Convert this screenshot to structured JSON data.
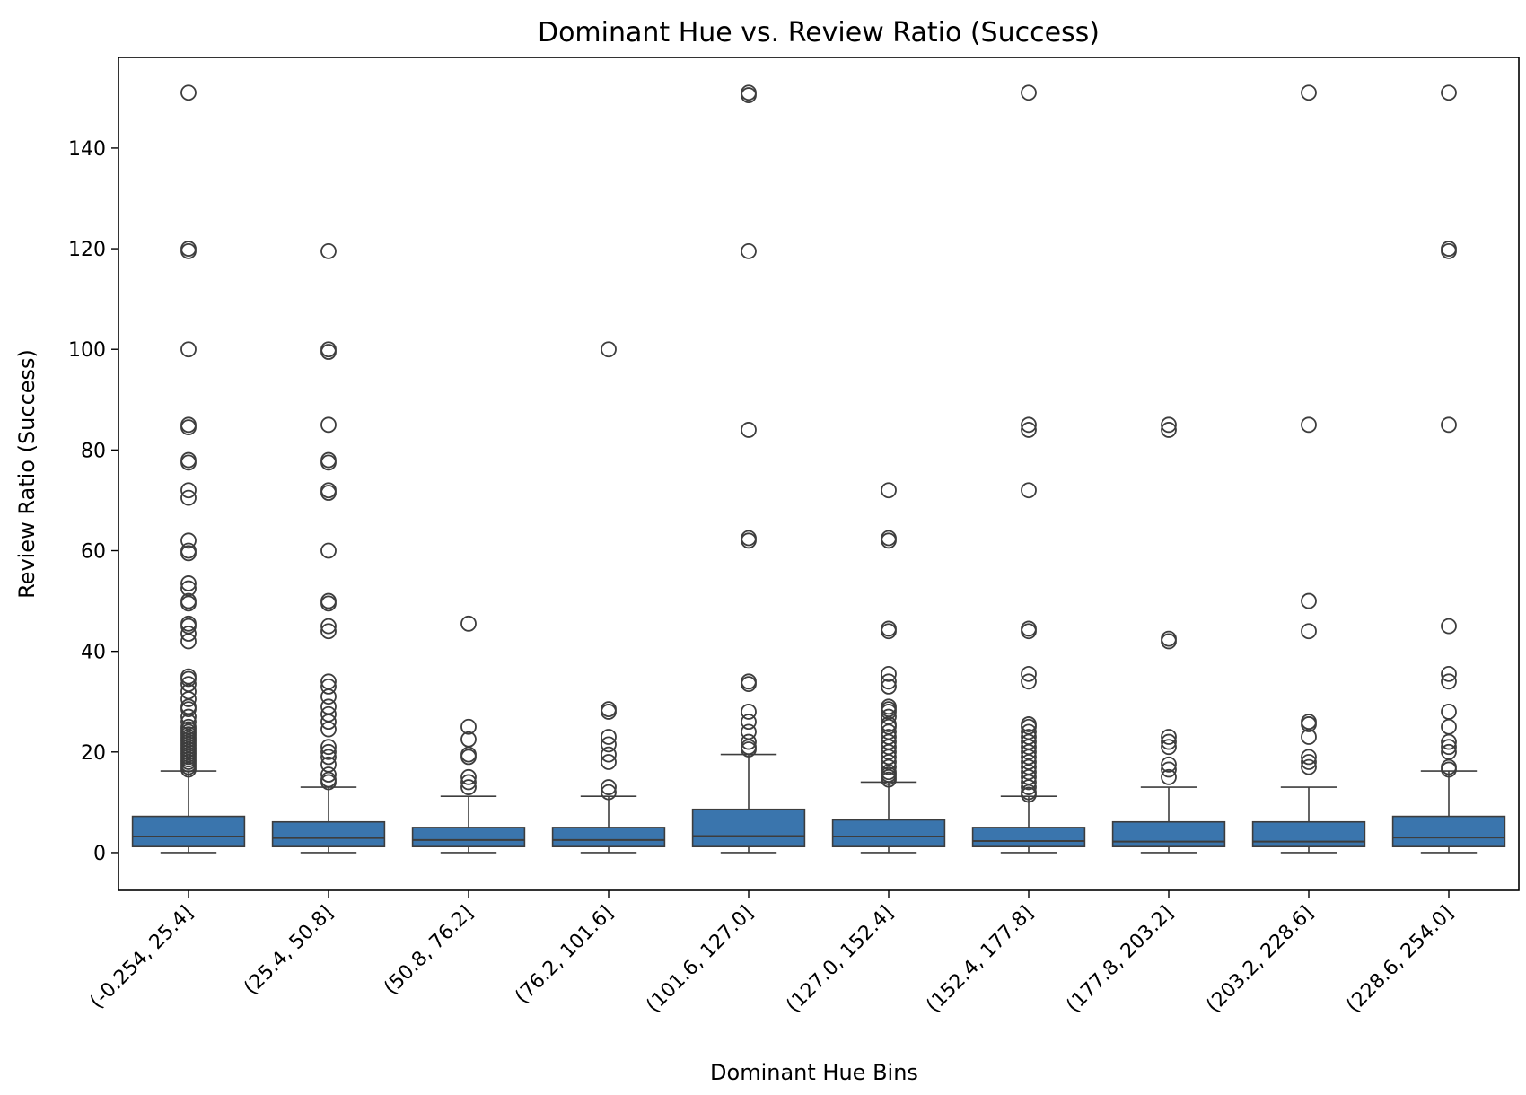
{
  "chart_data": {
    "type": "box",
    "title": "Dominant Hue vs. Review Ratio (Success)",
    "xlabel": "Dominant Hue Bins",
    "ylabel": "Review Ratio (Success)",
    "ylim": [
      -7.5,
      158
    ],
    "yticks": [
      0,
      20,
      40,
      60,
      80,
      100,
      120,
      140
    ],
    "grid": false,
    "legend": "none",
    "colors": {
      "box": "#3a75ad",
      "line": "#3d3d3d",
      "frame": "#000000"
    },
    "categories": [
      "(-0.254, 25.4]",
      "(25.4, 50.8]",
      "(50.8, 76.2]",
      "(76.2, 101.6]",
      "(101.6, 127.0]",
      "(127.0, 152.4]",
      "(152.4, 177.8]",
      "(177.8, 203.2]",
      "(203.2, 228.6]",
      "(228.6, 254.0]"
    ],
    "boxes": [
      {
        "whisker_low": 0,
        "q1": 1.2,
        "median": 3.2,
        "q3": 7.2,
        "whisker_high": 16.2,
        "outliers": [
          16.5,
          17,
          17.5,
          18,
          18.5,
          19,
          19.5,
          20,
          20.5,
          21,
          21.5,
          22,
          22.5,
          23,
          23.5,
          24,
          24.5,
          25,
          26,
          27,
          28.5,
          29,
          30.5,
          32,
          33.5,
          34.5,
          35,
          42,
          43.5,
          45,
          45.5,
          49.5,
          50,
          52.5,
          53.5,
          59.5,
          60,
          62,
          70.5,
          72,
          77.5,
          78,
          84.5,
          85,
          100,
          119.5,
          120,
          151
        ]
      },
      {
        "whisker_low": 0,
        "q1": 1.2,
        "median": 2.9,
        "q3": 6.1,
        "whisker_high": 13,
        "outliers": [
          14,
          14.5,
          15.5,
          17.5,
          19,
          20,
          21,
          24.5,
          26,
          27.5,
          29,
          31,
          33,
          34,
          44,
          45,
          49.5,
          50,
          60,
          71.5,
          72,
          77.5,
          78,
          85,
          99.5,
          100,
          119.5
        ]
      },
      {
        "whisker_low": 0,
        "q1": 1.2,
        "median": 2.5,
        "q3": 5,
        "whisker_high": 11.2,
        "outliers": [
          13,
          14,
          15,
          19,
          19.5,
          22.5,
          25,
          45.5
        ]
      },
      {
        "whisker_low": 0,
        "q1": 1.2,
        "median": 2.5,
        "q3": 5,
        "whisker_high": 11.2,
        "outliers": [
          12,
          13,
          18,
          19.5,
          21.5,
          23,
          28,
          28.5,
          100
        ]
      },
      {
        "whisker_low": 0,
        "q1": 1.2,
        "median": 3.3,
        "q3": 8.6,
        "whisker_high": 19.5,
        "outliers": [
          20.5,
          21,
          22,
          24,
          26,
          28,
          33.5,
          34,
          62,
          62.5,
          84,
          119.5,
          150.5,
          151
        ]
      },
      {
        "whisker_low": 0,
        "q1": 1.2,
        "median": 3.2,
        "q3": 6.5,
        "whisker_high": 14,
        "outliers": [
          14.5,
          15,
          15.5,
          16,
          17,
          18,
          19,
          20,
          21,
          22,
          23,
          24,
          25,
          25.5,
          27,
          28,
          28.5,
          29,
          33,
          34,
          35.5,
          44,
          44.5,
          62,
          62.5,
          72
        ]
      },
      {
        "whisker_low": 0,
        "q1": 1.2,
        "median": 2.3,
        "q3": 5,
        "whisker_high": 11.2,
        "outliers": [
          11.5,
          12,
          13,
          14,
          15,
          16,
          17,
          18,
          19,
          20,
          21,
          22,
          23,
          24,
          25,
          25.5,
          34,
          35.5,
          44,
          44.5,
          72,
          84,
          85,
          151
        ]
      },
      {
        "whisker_low": 0,
        "q1": 1.2,
        "median": 2.2,
        "q3": 6.1,
        "whisker_high": 13,
        "outliers": [
          15,
          16.5,
          17.5,
          21,
          22,
          23,
          42,
          42.5,
          84,
          85
        ]
      },
      {
        "whisker_low": 0,
        "q1": 1.2,
        "median": 2.2,
        "q3": 6.1,
        "whisker_high": 13,
        "outliers": [
          17,
          18,
          19,
          23,
          25.5,
          26,
          44,
          50,
          85,
          151
        ]
      },
      {
        "whisker_low": 0,
        "q1": 1.2,
        "median": 3,
        "q3": 7.2,
        "whisker_high": 16.2,
        "outliers": [
          16.5,
          17,
          20,
          21,
          22,
          25,
          28,
          34,
          35.5,
          45,
          85,
          119.5,
          120,
          151
        ]
      }
    ]
  }
}
